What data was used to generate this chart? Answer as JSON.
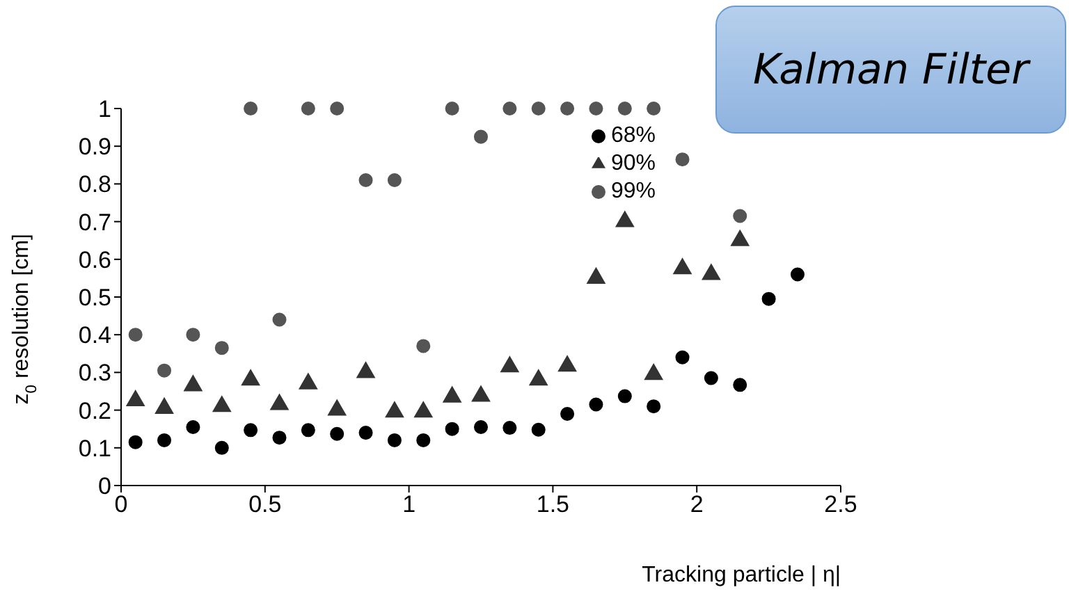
{
  "chart_data": {
    "type": "scatter",
    "xlabel": "Tracking particle | η|",
    "ylabel": "z$_{0}$ resolution [cm]",
    "annotations": [
      "Kalman Filter"
    ],
    "x": [
      0.05,
      0.15,
      0.25,
      0.35,
      0.45,
      0.55,
      0.65,
      0.75,
      0.85,
      0.95,
      1.05,
      1.15,
      1.25,
      1.35,
      1.45,
      1.55,
      1.65,
      1.75,
      1.85,
      1.95,
      2.05,
      2.15,
      2.25,
      2.35
    ],
    "series": [
      {
        "name": "99%",
        "color": "#555555",
        "marker": "circle",
        "values": [
          0.4,
          0.305,
          0.4,
          0.365,
          1.0,
          0.44,
          1.0,
          1.0,
          0.81,
          0.81,
          0.37,
          1.0,
          0.925,
          1.0,
          1.0,
          1.0,
          1.0,
          1.0,
          1.0,
          0.865,
          null,
          0.715,
          null,
          null
        ]
      },
      {
        "name": "90%",
        "color": "#333333",
        "marker": "triangle",
        "values": [
          0.225,
          0.205,
          0.265,
          0.21,
          0.28,
          0.215,
          0.27,
          0.2,
          0.3,
          0.195,
          0.195,
          0.235,
          0.237,
          0.315,
          0.28,
          0.317,
          0.55,
          0.7,
          0.295,
          0.575,
          0.56,
          0.65,
          null,
          null
        ]
      },
      {
        "name": "68%",
        "color": "#000000",
        "marker": "circle",
        "values": [
          0.115,
          0.12,
          0.155,
          0.1,
          0.147,
          0.127,
          0.147,
          0.137,
          0.14,
          0.12,
          0.12,
          0.15,
          0.155,
          0.153,
          0.148,
          0.19,
          0.215,
          0.237,
          0.21,
          0.34,
          0.285,
          0.267,
          0.495,
          0.56
        ]
      }
    ],
    "xlim": [
      0,
      2.5
    ],
    "xticks": [
      0,
      0.5,
      1,
      1.5,
      2,
      2.5
    ],
    "ylim": [
      0,
      1
    ],
    "yticks": [
      0,
      0.1,
      0.2,
      0.3,
      0.4,
      0.5,
      0.6,
      0.7,
      0.8,
      0.9,
      1
    ],
    "grid": false,
    "legend": "top"
  }
}
